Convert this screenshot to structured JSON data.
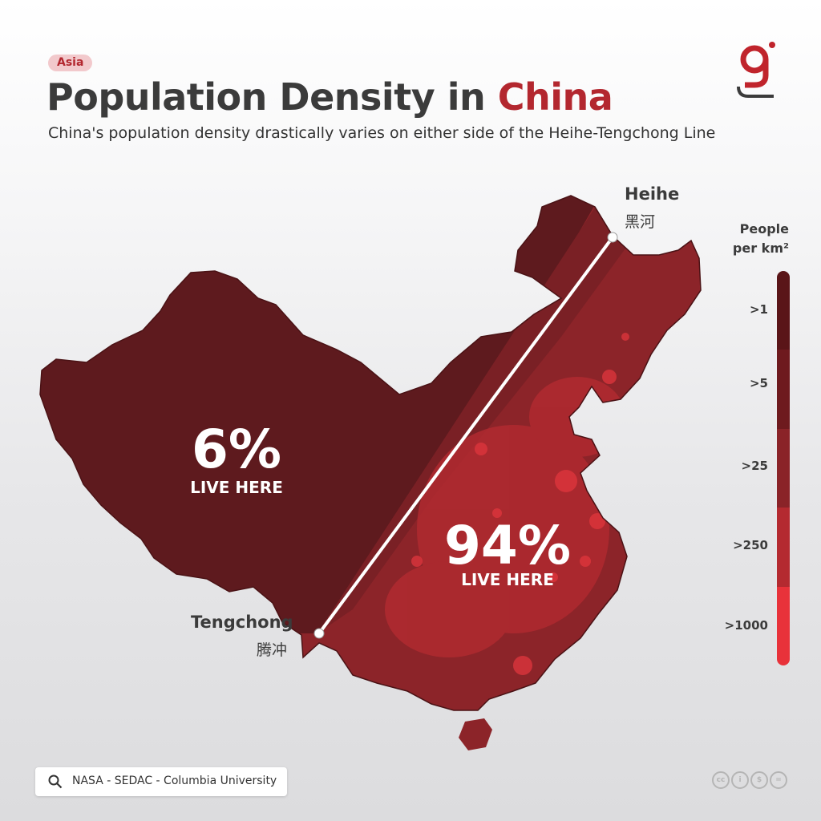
{
  "header": {
    "tag": "Asia",
    "title_main": "Population Density in ",
    "title_accent": "China",
    "subtitle": "China's population density drastically varies on either side of the Heihe-Tengchong Line"
  },
  "map": {
    "west_percent": "6%",
    "west_label": "LIVE HERE",
    "east_percent": "94%",
    "east_label": "LIVE HERE",
    "heihe_en": "Heihe",
    "heihe_zh": "黑河",
    "tengchong_en": "Tengchong",
    "tengchong_zh": "腾冲"
  },
  "legend": {
    "title_line1": "People",
    "title_line2": "per km²",
    "items": [
      {
        "label": ">1",
        "color": "#5a1518"
      },
      {
        "label": ">5",
        "color": "#6e1a1e"
      },
      {
        "label": ">25",
        "color": "#8a2328"
      },
      {
        "label": ">250",
        "color": "#b42a30"
      },
      {
        "label": ">1000",
        "color": "#e8323a"
      }
    ]
  },
  "source": {
    "text": "NASA - SEDAC - Columbia University",
    "icon": "search-icon"
  },
  "license": {
    "icon": "creative-commons-icons"
  },
  "colors": {
    "accent": "#b3272f",
    "west_region": "#5e1a1e",
    "east_region": "#8c2429",
    "dense_spots": "#d8333a"
  }
}
